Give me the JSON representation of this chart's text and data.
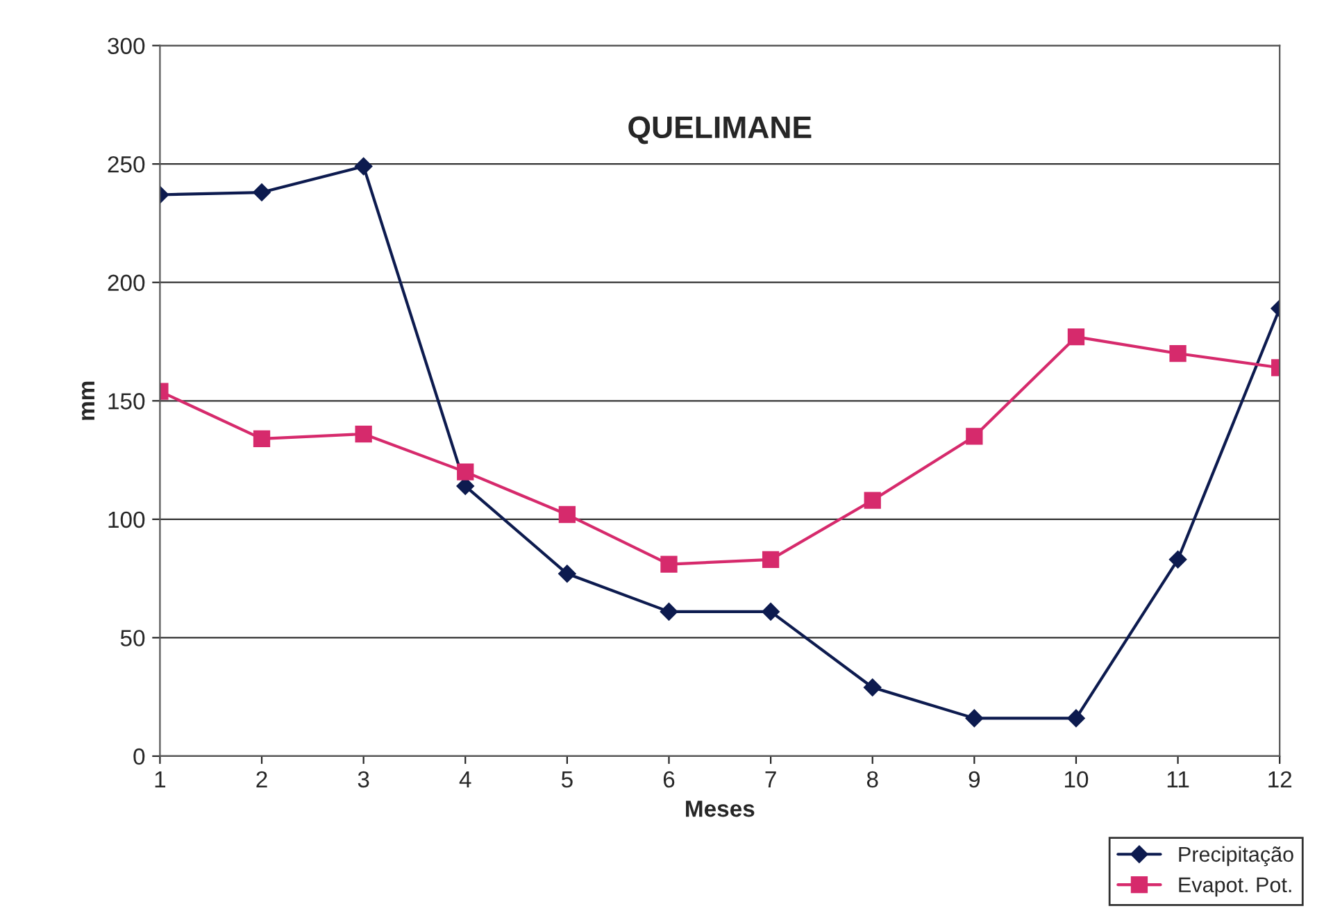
{
  "chart_data": {
    "type": "line",
    "title": "QUELIMANE",
    "xlabel": "Meses",
    "ylabel": "mm",
    "x": [
      1,
      2,
      3,
      4,
      5,
      6,
      7,
      8,
      9,
      10,
      11,
      12
    ],
    "series": [
      {
        "name": "Precipitação",
        "color": "#0d1b4f",
        "marker": "diamond",
        "values": [
          237,
          238,
          249,
          114,
          77,
          61,
          61,
          29,
          16,
          16,
          83,
          189
        ]
      },
      {
        "name": "Evapot. Pot.",
        "color": "#d62a6c",
        "marker": "square",
        "values": [
          154,
          134,
          136,
          120,
          102,
          81,
          83,
          108,
          135,
          177,
          170,
          164
        ]
      }
    ],
    "xlim": [
      1,
      12
    ],
    "xticks": [
      1,
      2,
      3,
      4,
      5,
      6,
      7,
      8,
      9,
      10,
      11,
      12
    ],
    "ylim": [
      0,
      300
    ],
    "yticks": [
      0,
      50,
      100,
      150,
      200,
      250,
      300
    ],
    "grid": "y",
    "legend": "bottom right"
  }
}
